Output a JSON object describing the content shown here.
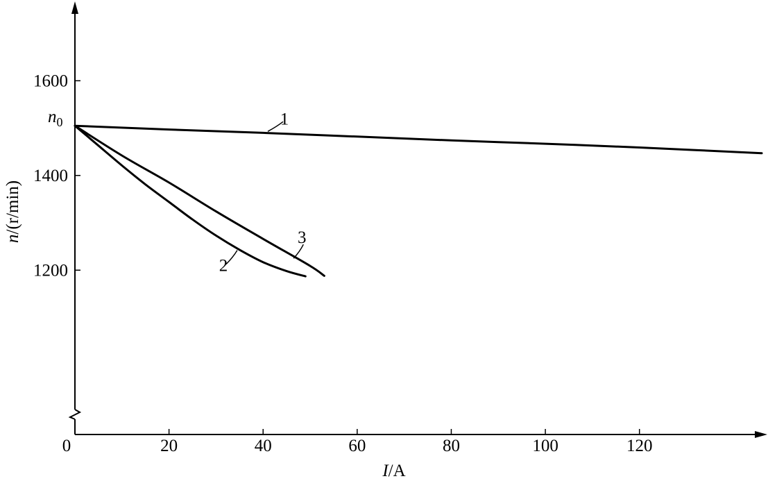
{
  "chart_data": {
    "type": "line",
    "xlabel": {
      "var": "I",
      "unit": "/A"
    },
    "ylabel": {
      "var": "n",
      "unit": "/(r/min)"
    },
    "x_ticks": [
      0,
      20,
      40,
      60,
      80,
      100,
      120
    ],
    "y_ticks": [
      1200,
      1400,
      1600
    ],
    "n0": {
      "symbol": "n",
      "sub": "0",
      "value": 1505
    },
    "xlim": [
      0,
      146
    ],
    "ylim": [
      853,
      1750
    ],
    "grid": false,
    "series": [
      {
        "name": "1",
        "x": [
          0,
          20,
          40,
          60,
          80,
          100,
          120,
          146
        ],
        "y": [
          1505,
          1497,
          1490,
          1482,
          1474,
          1467,
          1459,
          1447
        ],
        "label_at": {
          "x": 41,
          "y": 1493
        }
      },
      {
        "name": "2",
        "x": [
          0,
          5,
          10,
          15,
          20,
          25,
          30,
          35,
          40,
          45,
          49
        ],
        "y": [
          1505,
          1463,
          1421,
          1381,
          1344,
          1307,
          1273,
          1243,
          1217,
          1198,
          1187
        ],
        "label_at": {
          "x": 34.5,
          "y": 1242
        }
      },
      {
        "name": "3",
        "x": [
          0,
          10,
          20,
          30,
          40,
          50,
          53
        ],
        "y": [
          1505,
          1442,
          1385,
          1324,
          1266,
          1209,
          1188
        ],
        "label_at": {
          "x": 46.5,
          "y": 1225
        }
      }
    ]
  }
}
